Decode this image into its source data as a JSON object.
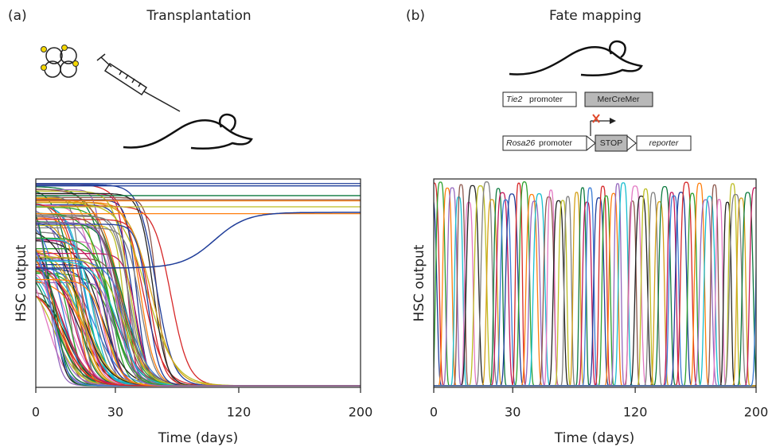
{
  "panels": [
    {
      "label": "(a)",
      "title": "Transplantation",
      "chart": {
        "y_label": "HSC output",
        "x_label": "Time (days)",
        "xticks": [
          0,
          30,
          120,
          200
        ]
      }
    },
    {
      "label": "(b)",
      "title": "Fate mapping",
      "chart": {
        "y_label": "HSC output",
        "x_label": "Time (days)",
        "xticks": [
          0,
          30,
          120,
          200
        ]
      },
      "constructs": [
        {
          "gene": "Tie2",
          "promoter": "promoter",
          "box": "MerCreMer"
        },
        {
          "gene": "Rosa26",
          "promoter": "promoter",
          "box": "STOP",
          "reporter": "reporter"
        }
      ]
    }
  ]
}
